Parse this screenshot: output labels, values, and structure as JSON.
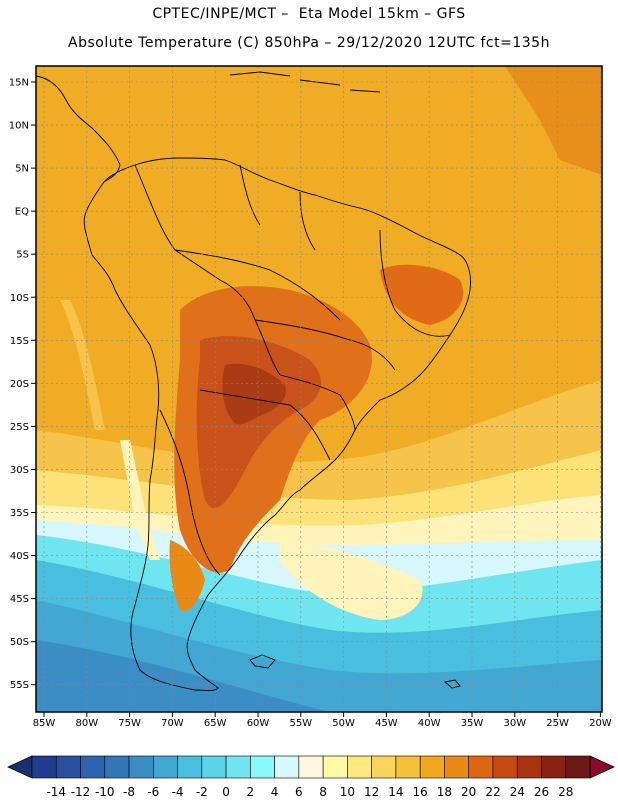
{
  "header": {
    "line1": "CPTEC/INPE/MCT –  Eta Model 15km – GFS",
    "line2": "Absolute Temperature (C) 850hPa – 29/12/2020 12UTC fct=135h"
  },
  "map": {
    "lat_labels": [
      "15N",
      "10N",
      "5N",
      "EQ",
      "5S",
      "10S",
      "15S",
      "20S",
      "25S",
      "30S",
      "35S",
      "40S",
      "45S",
      "50S",
      "55S"
    ],
    "lon_labels": [
      "85W",
      "80W",
      "75W",
      "70W",
      "65W",
      "60W",
      "55W",
      "50W",
      "45W",
      "40W",
      "35W",
      "30W",
      "25W",
      "20W"
    ]
  },
  "colorbar": {
    "labels": [
      "-14",
      "-12",
      "-10",
      "-8",
      "-6",
      "-4",
      "-2",
      "0",
      "2",
      "4",
      "6",
      "8",
      "10",
      "12",
      "14",
      "16",
      "18",
      "20",
      "22",
      "24",
      "26",
      "28"
    ],
    "colors": [
      "#1f3c8f",
      "#27509f",
      "#2e64ae",
      "#3278b8",
      "#3a8ec5",
      "#42a7d3",
      "#49bfdf",
      "#5ad4e8",
      "#6fe6ef",
      "#8bf7f7",
      "#d6f7fb",
      "#fff8e1",
      "#fffaa6",
      "#fde980",
      "#fbd45c",
      "#f5c03b",
      "#f0a81e",
      "#e88a14",
      "#e06510",
      "#c84a0e",
      "#a93410",
      "#8a2412",
      "#6e1a14"
    ],
    "under_color": "#1b2f73",
    "over_color": "#8a0a2a"
  }
}
